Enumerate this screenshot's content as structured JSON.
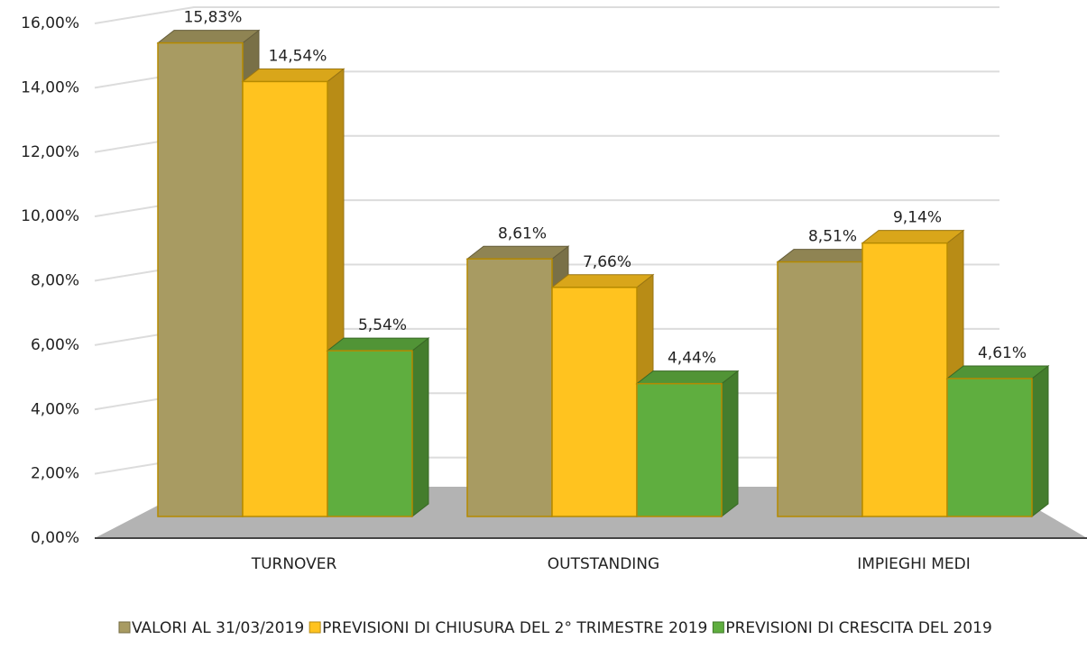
{
  "chart_data": {
    "type": "bar3d",
    "categories": [
      "TURNOVER",
      "OUTSTANDING",
      "IMPIEGHI MEDI"
    ],
    "series": [
      {
        "name": "VALORI AL 31/03/2019",
        "color": "#a89b62",
        "values": [
          15.83,
          8.61,
          8.51
        ],
        "value_labels": [
          "15,83%",
          "8,61%",
          "8,51%"
        ]
      },
      {
        "name": "PREVISIONI DI CHIUSURA DEL 2° TRIMESTRE 2019",
        "color": "#ffc31f",
        "values": [
          14.54,
          7.66,
          9.14
        ],
        "value_labels": [
          "14,54%",
          "7,66%",
          "9,14%"
        ]
      },
      {
        "name": "PREVISIONI DI CRESCITA DEL 2019",
        "color": "#5fae3f",
        "values": [
          5.54,
          4.44,
          4.61
        ],
        "value_labels": [
          "5,54%",
          "4,44%",
          "4,61%"
        ]
      }
    ],
    "ylim": [
      0,
      16
    ],
    "yticks": [
      {
        "value": 0,
        "label": "0,00%"
      },
      {
        "value": 2,
        "label": "2,00%"
      },
      {
        "value": 4,
        "label": "4,00%"
      },
      {
        "value": 6,
        "label": "6,00%"
      },
      {
        "value": 8,
        "label": "8,00%"
      },
      {
        "value": 10,
        "label": "10,00%"
      },
      {
        "value": 12,
        "label": "12,00%"
      },
      {
        "value": 14,
        "label": "14,00%"
      },
      {
        "value": 16,
        "label": "16,00%"
      }
    ],
    "grid": true,
    "legend": "bottom"
  }
}
